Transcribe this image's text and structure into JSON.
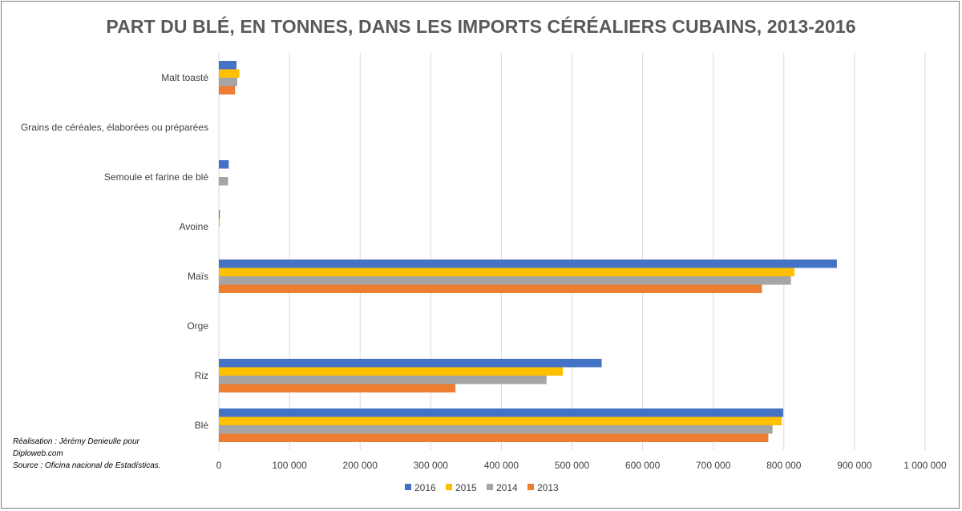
{
  "chart_data": {
    "type": "bar",
    "orientation": "horizontal",
    "title": "PART DU BLÉ, EN TONNES, DANS LES IMPORTS CÉRÉALIERS CUBAINS, 2013-2016",
    "categories": [
      "Malt toasté",
      "Grains de céréales, élaborées ou préparées",
      "Semoule et farine de blé",
      "Avoine",
      "Maïs",
      "Orge",
      "Riz",
      "Blé"
    ],
    "series": [
      {
        "name": "2016",
        "color": "#4472c4",
        "values": [
          25000,
          0,
          14000,
          1000,
          875000,
          0,
          542000,
          799000
        ]
      },
      {
        "name": "2015",
        "color": "#ffc000",
        "values": [
          29000,
          0,
          0,
          1000,
          815000,
          0,
          487000,
          797000
        ]
      },
      {
        "name": "2014",
        "color": "#a5a5a5",
        "values": [
          26000,
          0,
          13000,
          0,
          810000,
          0,
          464000,
          784000
        ]
      },
      {
        "name": "2013",
        "color": "#ed7d31",
        "values": [
          23000,
          0,
          0,
          0,
          769000,
          0,
          335000,
          778000
        ]
      }
    ],
    "xlim": [
      0,
      1000000
    ],
    "x_ticks": [
      "0",
      "100 000",
      "200 000",
      "300 000",
      "400 000",
      "500 000",
      "600 000",
      "700 000",
      "800 000",
      "900 000",
      "1 000 000"
    ],
    "grid": "vertical",
    "legend_position": "bottom"
  },
  "note": {
    "line1": "Réalisation : Jérémy Denieulle pour",
    "line2": "Diploweb.com",
    "line3": "Source : Oficina nacional de Estadísticas."
  }
}
